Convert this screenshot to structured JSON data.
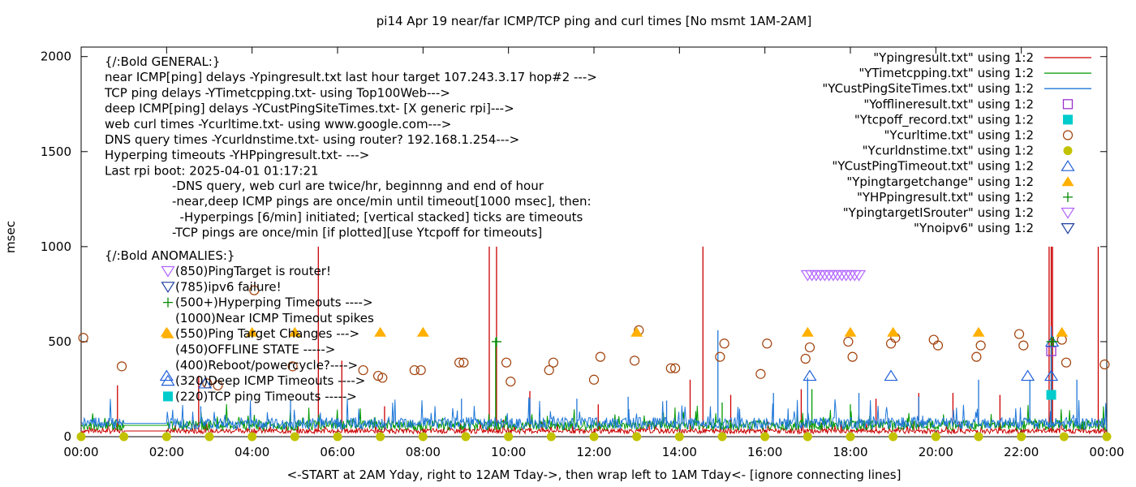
{
  "chart_data": {
    "type": "line",
    "title": "pi14 Apr 19  near/far ICMP/TCP ping and curl times [No msmt 1AM-2AM]",
    "ylabel": "msec",
    "xlabel": "<-START at 2AM Yday, right to 12AM Tday->, then wrap left to 1AM Tday<- [ignore connecting lines]",
    "xlim": [
      0,
      24
    ],
    "ylim": [
      0,
      2050
    ],
    "x_tick_labels": [
      "00:00",
      "02:00",
      "04:00",
      "06:00",
      "08:00",
      "10:00",
      "12:00",
      "14:00",
      "16:00",
      "18:00",
      "20:00",
      "22:00",
      "00:00"
    ],
    "y_tick_labels": [
      "0",
      "500",
      "1000",
      "1500",
      "2000"
    ],
    "y_ticks": [
      0,
      500,
      1000,
      1500,
      2000
    ],
    "grid": false,
    "legend_position": "top-right",
    "annotation_lines": [
      "{/:Bold GENERAL:}",
      "near ICMP[ping] delays -Ypingresult.txt last hour target 107.243.3.17 hop#2 --->",
      "TCP ping delays -YTimetcpping.txt- using Top100Web--->",
      "deep ICMP[ping] delays -YCustPingSiteTimes.txt- [X generic rpi]--->",
      "web curl times -Ycurltime.txt- using www.google.com--->",
      "DNS query times -Ycurldnstime.txt- using router? 192.168.1.254--->",
      "Hyperping timeouts -YHPpingresult.txt- --->",
      "Last rpi boot: 2025-04-01 01:17:21"
    ],
    "notes_lines": [
      "-DNS query, web curl are twice/hr, beginnng and end of hour",
      "-near,deep ICMP pings are once/min until timeout[1000 msec], then:",
      "  -Hyperpings [6/min] initiated; [vertical stacked] ticks are timeouts",
      "-TCP pings are once/min [if plotted][use Ytcpoff for timeouts]"
    ],
    "anomalies_title": "{/:Bold ANOMALIES:}",
    "anomalies": [
      {
        "marker": "triangle-down-violet",
        "label": "(850)PingTarget is router!"
      },
      {
        "marker": "triangle-down-blue",
        "label": "(785)ipv6 failure!"
      },
      {
        "marker": "plus-green",
        "label": "(500+)Hyperping Timeouts ---->"
      },
      {
        "marker": "",
        "label": "(1000)Near ICMP Timeout spikes"
      },
      {
        "marker": "triangle-up-orange",
        "label": "(550)Ping Target Changes --->"
      },
      {
        "marker": "",
        "label": "(450)OFFLINE STATE ----->"
      },
      {
        "marker": "",
        "label": "(400)Reboot/powercycle?---->"
      },
      {
        "marker": "triangle-up-blue",
        "label": "(320)Deep ICMP Timeouts ---->"
      },
      {
        "marker": "square-cyan",
        "label": "(220)TCP ping Timeouts ----->"
      }
    ],
    "legend": [
      {
        "label": "\"Ypingresult.txt\" using 1:2",
        "marker": "line",
        "color": "#cc0000"
      },
      {
        "label": "\"YTimetcpping.txt\" using 1:2",
        "marker": "line",
        "color": "#009900"
      },
      {
        "label": "\"YCustPingSiteTimes.txt\" using 1:2",
        "marker": "line",
        "color": "#1f77d8"
      },
      {
        "label": "\"Yofflineresult.txt\" using 1:2",
        "marker": "square-open",
        "color": "#9933cc"
      },
      {
        "label": "\"Ytcpoff_record.txt\" using 1:2",
        "marker": "square-filled",
        "color": "#00cccc"
      },
      {
        "label": "\"Ycurltime.txt\" using 1:2",
        "marker": "circle-open",
        "color": "#a0400a"
      },
      {
        "label": "\"Ycurldnstime.txt\" using 1:2",
        "marker": "circle-filled",
        "color": "#c2c200"
      },
      {
        "label": "\"YCustPingTimeout.txt\" using 1:2",
        "marker": "triangle-up-open",
        "color": "#1f5fd8"
      },
      {
        "label": "\"Ypingtargetchange\" using 1:2",
        "marker": "triangle-up-filled",
        "color": "#ffb000"
      },
      {
        "label": "\"YHPpingresult.txt\" using 1:2",
        "marker": "plus",
        "color": "#008800"
      },
      {
        "label": "\"YpingtargetISrouter\" using 1:2",
        "marker": "triangle-down-open",
        "color": "#b266ff"
      },
      {
        "label": "\"Ynoipv6\" using 1:2",
        "marker": "triangle-down-open",
        "color": "#1f3fa0"
      }
    ],
    "series": [
      {
        "name": "\"Ypingresult.txt\" using 1:2",
        "color": "#cc0000",
        "baseline": 30,
        "spikes": [
          [
            0.85,
            270
          ],
          [
            2.75,
            320
          ],
          [
            5.55,
            1000
          ],
          [
            6.1,
            400
          ],
          [
            7.1,
            160
          ],
          [
            9.55,
            1000
          ],
          [
            9.72,
            1000
          ],
          [
            10.5,
            240
          ],
          [
            12.1,
            170
          ],
          [
            14.25,
            300
          ],
          [
            14.55,
            1000
          ],
          [
            15.2,
            220
          ],
          [
            16.85,
            250
          ],
          [
            18.6,
            200
          ],
          [
            19.6,
            230
          ],
          [
            20.4,
            230
          ],
          [
            21.5,
            220
          ],
          [
            22.65,
            1000
          ],
          [
            22.7,
            1000
          ],
          [
            22.73,
            1000
          ],
          [
            23.8,
            1000
          ]
        ]
      },
      {
        "name": "\"YTimetcpping.txt\" using 1:2",
        "color": "#009900",
        "baseline": 60,
        "spikes": [
          [
            2.0,
            60
          ],
          [
            9.7,
            520
          ],
          [
            15.0,
            180
          ],
          [
            17.1,
            250
          ],
          [
            18.0,
            170
          ],
          [
            22.7,
            500
          ]
        ]
      },
      {
        "name": "\"YCustPingSiteTimes.txt\" using 1:2",
        "color": "#1f77d8",
        "baseline": 70,
        "spikes": [
          [
            2.8,
            160
          ],
          [
            4.9,
            190
          ],
          [
            8.9,
            200
          ],
          [
            10.5,
            200
          ],
          [
            11.6,
            200
          ],
          [
            12.8,
            210
          ],
          [
            13.7,
            190
          ],
          [
            14.9,
            560
          ],
          [
            16.2,
            230
          ],
          [
            17.0,
            310
          ],
          [
            18.2,
            230
          ],
          [
            19.6,
            210
          ],
          [
            21.0,
            300
          ],
          [
            22.2,
            300
          ],
          [
            22.7,
            580
          ],
          [
            23.3,
            300
          ]
        ]
      },
      {
        "name": "\"Yofflineresult.txt\" using 1:2",
        "color": "#9933cc",
        "points": [
          [
            22.7,
            450
          ]
        ]
      },
      {
        "name": "\"Ytcpoff_record.txt\" using 1:2",
        "color": "#00cccc",
        "points": [
          [
            22.7,
            220
          ]
        ]
      },
      {
        "name": "\"Ycurltime.txt\" using 1:2",
        "color": "#a0400a",
        "points": [
          [
            0.05,
            520
          ],
          [
            0.95,
            370
          ],
          [
            2.95,
            280
          ],
          [
            3.2,
            270
          ],
          [
            4.05,
            770
          ],
          [
            4.95,
            370
          ],
          [
            6.6,
            350
          ],
          [
            6.95,
            320
          ],
          [
            7.05,
            310
          ],
          [
            7.8,
            350
          ],
          [
            7.95,
            350
          ],
          [
            8.85,
            390
          ],
          [
            8.95,
            390
          ],
          [
            9.95,
            390
          ],
          [
            10.05,
            290
          ],
          [
            10.95,
            350
          ],
          [
            11.05,
            390
          ],
          [
            12.0,
            300
          ],
          [
            12.15,
            420
          ],
          [
            12.95,
            400
          ],
          [
            13.05,
            560
          ],
          [
            13.8,
            360
          ],
          [
            13.9,
            360
          ],
          [
            14.95,
            420
          ],
          [
            15.05,
            490
          ],
          [
            15.9,
            330
          ],
          [
            16.05,
            490
          ],
          [
            16.95,
            410
          ],
          [
            17.05,
            470
          ],
          [
            17.95,
            500
          ],
          [
            18.05,
            420
          ],
          [
            18.95,
            490
          ],
          [
            19.05,
            520
          ],
          [
            19.95,
            510
          ],
          [
            20.05,
            480
          ],
          [
            20.95,
            420
          ],
          [
            21.05,
            480
          ],
          [
            21.95,
            540
          ],
          [
            22.05,
            480
          ],
          [
            22.95,
            510
          ],
          [
            23.05,
            390
          ],
          [
            23.95,
            380
          ]
        ]
      },
      {
        "name": "\"Ycurldnstime.txt\" using 1:2",
        "color": "#c2c200",
        "points": [
          [
            0.0,
            0
          ],
          [
            1.0,
            0
          ],
          [
            2.0,
            0
          ],
          [
            3.0,
            0
          ],
          [
            4.0,
            0
          ],
          [
            5.0,
            0
          ],
          [
            6.0,
            0
          ],
          [
            7.0,
            0
          ],
          [
            8.0,
            0
          ],
          [
            9.0,
            0
          ],
          [
            10.0,
            0
          ],
          [
            11.0,
            0
          ],
          [
            12.0,
            0
          ],
          [
            13.0,
            0
          ],
          [
            14.0,
            0
          ],
          [
            15.0,
            0
          ],
          [
            16.0,
            0
          ],
          [
            17.0,
            0
          ],
          [
            18.0,
            0
          ],
          [
            19.0,
            0
          ],
          [
            20.0,
            0
          ],
          [
            21.0,
            0
          ],
          [
            22.0,
            0
          ],
          [
            23.0,
            0
          ],
          [
            24.0,
            0
          ]
        ]
      },
      {
        "name": "\"YCustPingTimeout.txt\" using 1:2",
        "color": "#1f5fd8",
        "points": [
          [
            2.0,
            320
          ],
          [
            2.9,
            280
          ],
          [
            17.05,
            320
          ],
          [
            18.95,
            320
          ],
          [
            22.15,
            320
          ],
          [
            22.7,
            320
          ],
          [
            22.72,
            500
          ]
        ]
      },
      {
        "name": "\"Ypingtargetchange\" using 1:2",
        "color": "#ffb000",
        "points": [
          [
            2.0,
            550
          ],
          [
            4.0,
            550
          ],
          [
            5.0,
            550
          ],
          [
            7.0,
            550
          ],
          [
            8.0,
            550
          ],
          [
            13.0,
            550
          ],
          [
            17.0,
            550
          ],
          [
            18.0,
            550
          ],
          [
            19.0,
            550
          ],
          [
            21.0,
            550
          ],
          [
            22.95,
            550
          ]
        ]
      },
      {
        "name": "\"YHPpingresult.txt\" using 1:2",
        "color": "#008800",
        "points": [
          [
            9.72,
            500
          ],
          [
            22.7,
            500
          ],
          [
            22.75,
            500
          ]
        ]
      },
      {
        "name": "\"YpingtargetISrouter\" using 1:2",
        "color": "#b266ff",
        "points": [
          [
            17.0,
            850
          ],
          [
            17.1,
            850
          ],
          [
            17.2,
            850
          ],
          [
            17.3,
            850
          ],
          [
            17.4,
            850
          ],
          [
            17.5,
            850
          ],
          [
            17.6,
            850
          ],
          [
            17.7,
            850
          ],
          [
            17.8,
            850
          ],
          [
            17.9,
            850
          ],
          [
            18.0,
            850
          ],
          [
            18.1,
            850
          ],
          [
            18.2,
            850
          ]
        ]
      },
      {
        "name": "\"Ynoipv6\" using 1:2",
        "color": "#1f3fa0",
        "points": []
      }
    ]
  }
}
